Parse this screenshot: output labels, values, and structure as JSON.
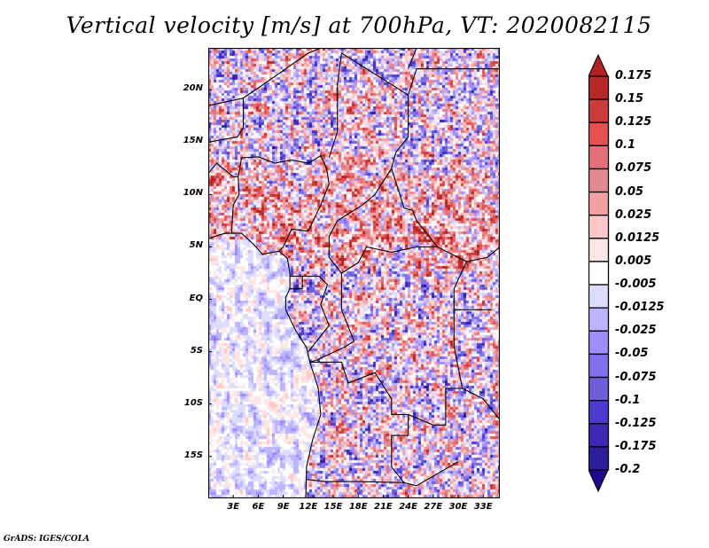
{
  "title": "Vertical velocity [m/s] at 700hPa, VT: 2020082115",
  "footer": "GrADS: IGES/COLA",
  "map": {
    "variable": "Vertical velocity",
    "units": "m/s",
    "level": "700hPa",
    "valid_time": "2020082115",
    "lon_range": [
      0,
      35
    ],
    "lat_range": [
      -19,
      24
    ],
    "lat_ticks": [
      {
        "value": 20,
        "label": "20N"
      },
      {
        "value": 15,
        "label": "15N"
      },
      {
        "value": 10,
        "label": "10N"
      },
      {
        "value": 5,
        "label": "5N"
      },
      {
        "value": 0,
        "label": "EQ"
      },
      {
        "value": -5,
        "label": "5S"
      },
      {
        "value": -10,
        "label": "10S"
      },
      {
        "value": -15,
        "label": "15S"
      }
    ],
    "lon_ticks": [
      {
        "value": 3,
        "label": "3E"
      },
      {
        "value": 6,
        "label": "6E"
      },
      {
        "value": 9,
        "label": "9E"
      },
      {
        "value": 12,
        "label": "12E"
      },
      {
        "value": 15,
        "label": "15E"
      },
      {
        "value": 18,
        "label": "18E"
      },
      {
        "value": 21,
        "label": "21E"
      },
      {
        "value": 24,
        "label": "24E"
      },
      {
        "value": 27,
        "label": "27E"
      },
      {
        "value": 30,
        "label": "30E"
      },
      {
        "value": 33,
        "label": "33E"
      }
    ]
  },
  "colorbar": {
    "labels": [
      "0.175",
      "0.15",
      "0.125",
      "0.1",
      "0.075",
      "0.05",
      "0.025",
      "0.0125",
      "0.005",
      "-0.005",
      "-0.0125",
      "-0.025",
      "-0.05",
      "-0.075",
      "-0.1",
      "-0.125",
      "-0.175",
      "-0.2"
    ],
    "colors": [
      "#b22222",
      "#b82828",
      "#cc3c3c",
      "#e65050",
      "#e6707a",
      "#e28a8f",
      "#f5a0a0",
      "#ffc8c8",
      "#ffe6e6",
      "#ffffff",
      "#dcdcff",
      "#bdb4ff",
      "#a08cff",
      "#8070eb",
      "#6e5ed8",
      "#4b3ccd",
      "#3c28b4",
      "#2d1e9b",
      "#1e0a8c"
    ]
  }
}
